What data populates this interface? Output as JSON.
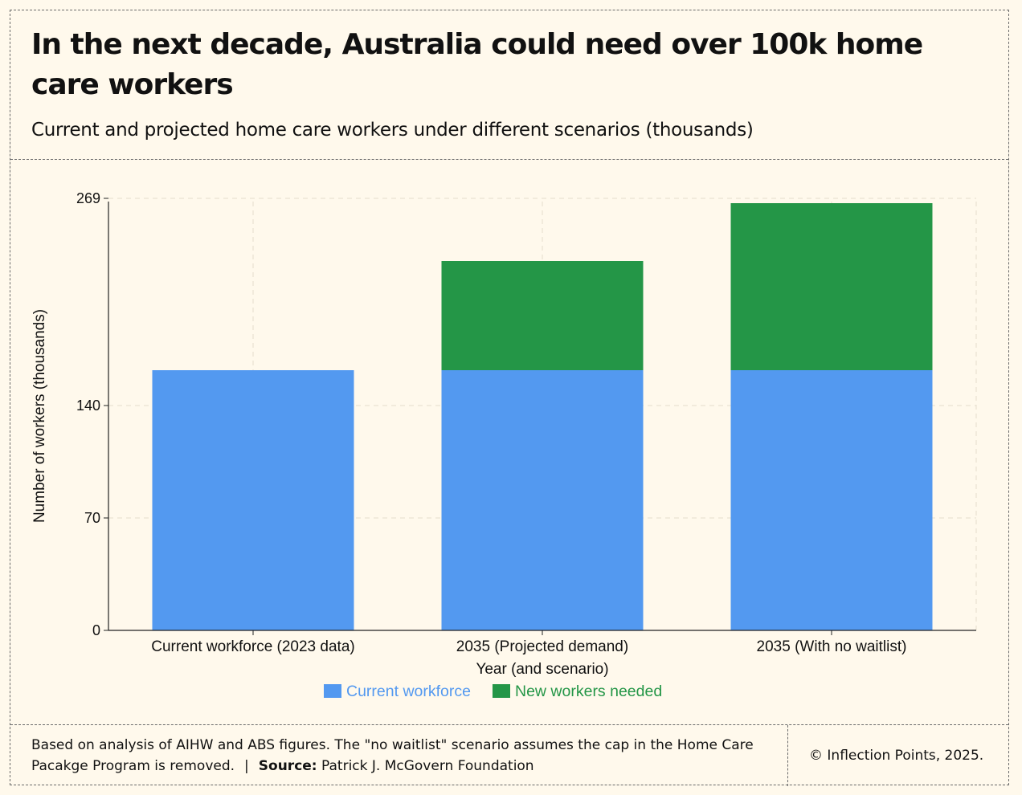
{
  "title": "In the next decade, Australia could need over 100k home care workers",
  "subtitle": "Current and projected home care workers under different scenarios (thousands)",
  "chart_data": {
    "type": "bar",
    "stacked": true,
    "categories": [
      "Current workforce (2023 data)",
      "2035 (Projected demand)",
      "2035 (With no waitlist)"
    ],
    "series": [
      {
        "name": "Current workforce",
        "color": "#5399f0",
        "values": [
          162,
          162,
          162
        ]
      },
      {
        "name": "New workers needed",
        "color": "#249647",
        "values": [
          0,
          68,
          104
        ]
      }
    ],
    "xlabel": "Year (and scenario)",
    "ylabel": "Number of workers (thousands)",
    "yticks": [
      0,
      70,
      140,
      269
    ],
    "ytick_labels": [
      "0",
      "70",
      "140",
      "269"
    ],
    "ylim": [
      0,
      267
    ],
    "grid": true,
    "legend_position": "bottom"
  },
  "footer": {
    "note": "Based on analysis of AIHW and ABS figures. The \"no waitlist\" scenario assumes the cap in the Home Care Pacakge Program is removed.",
    "separator": "|",
    "source_label": "Source:",
    "source": "Patrick J. McGovern Foundation",
    "copyright": "© Inflection Points, 2025."
  }
}
